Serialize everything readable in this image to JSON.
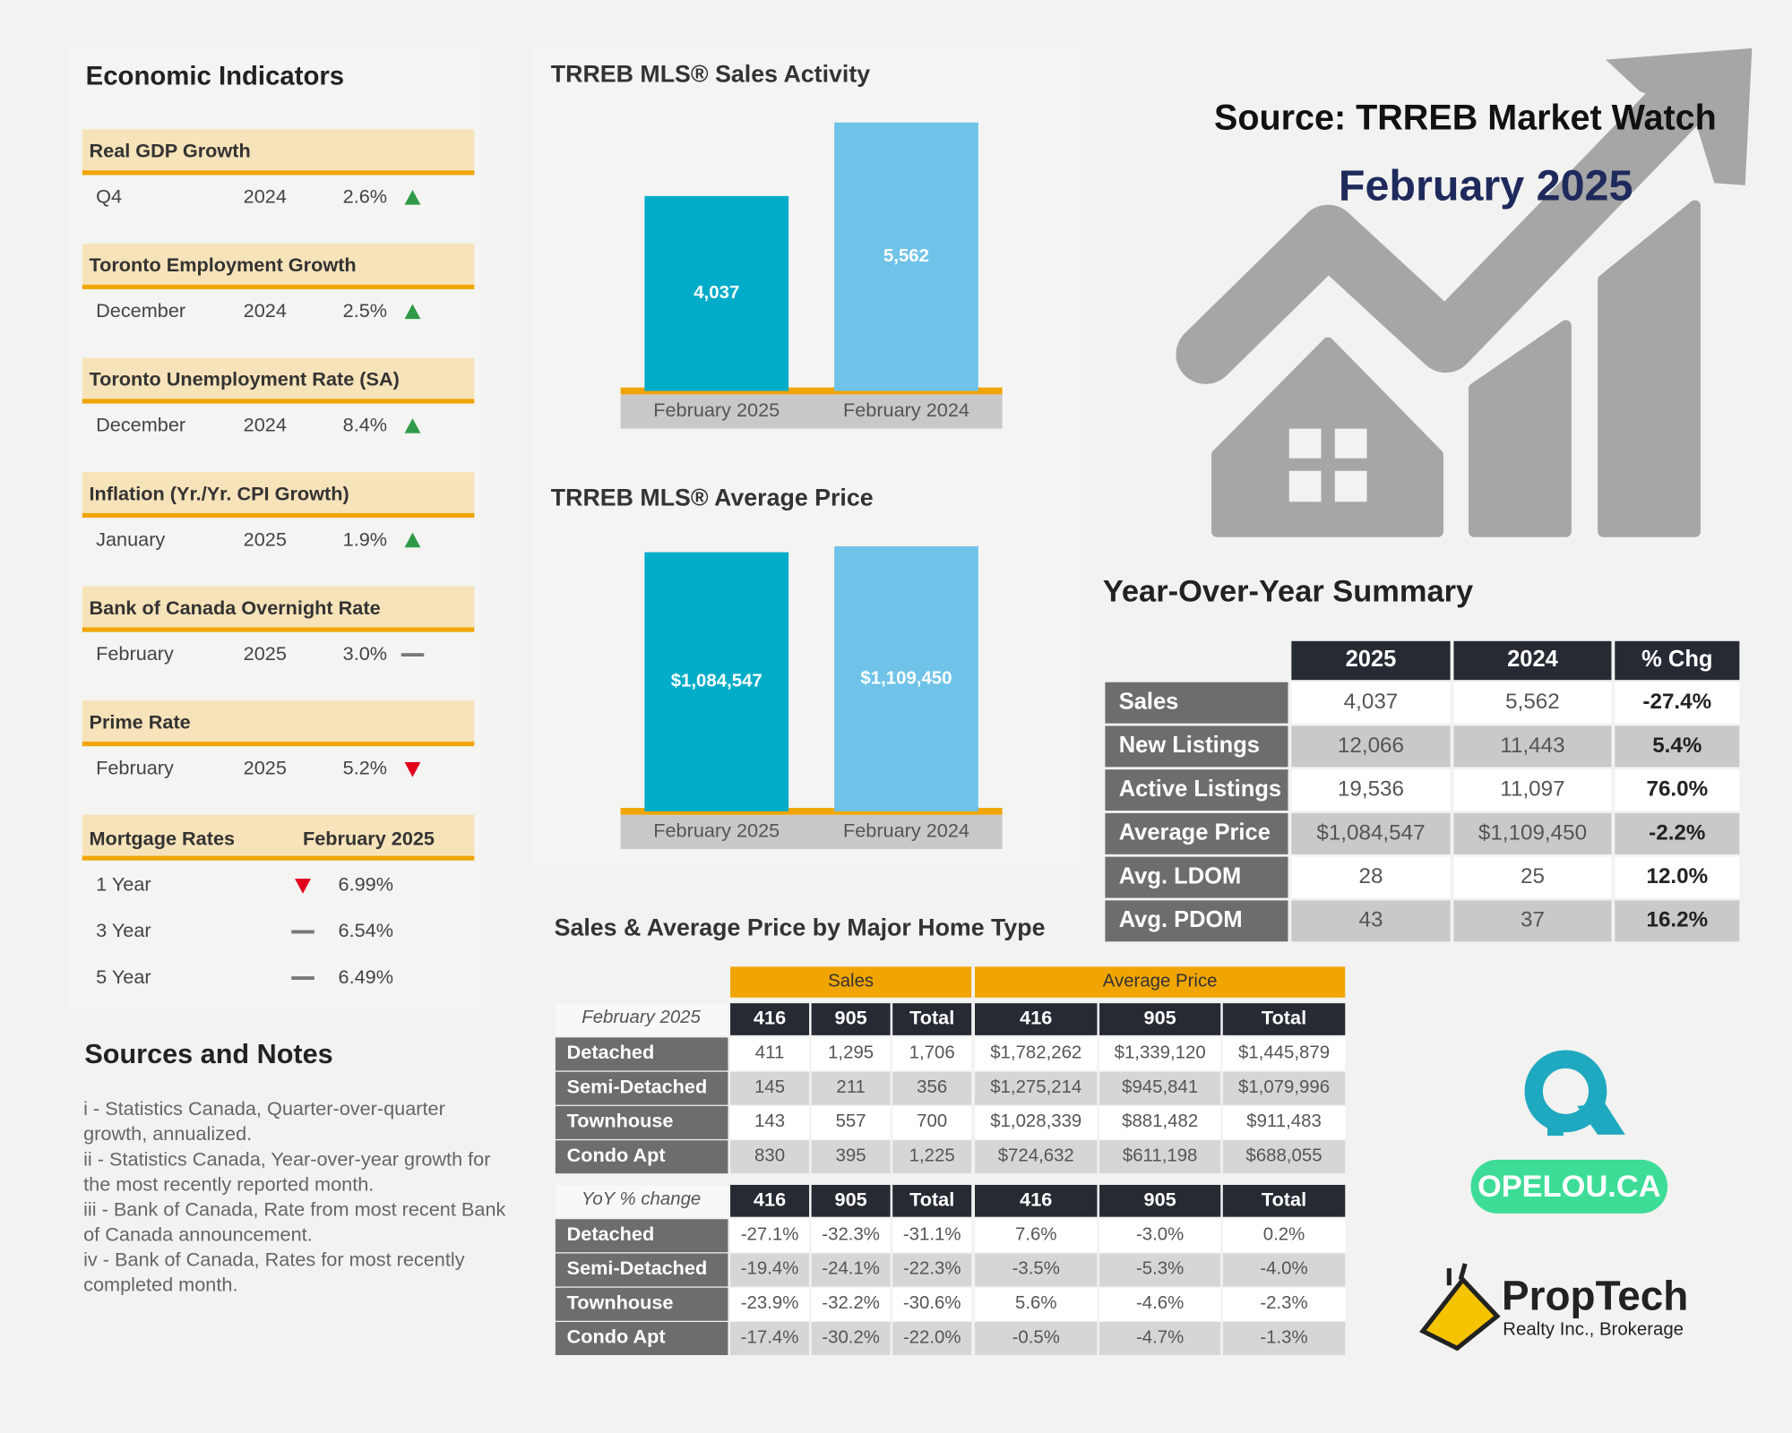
{
  "header": {
    "source": "Source: TRREB Market Watch",
    "period": "February 2025"
  },
  "economic_indicators": {
    "title": "Economic Indicators",
    "items": [
      {
        "title": "Real GDP Growth",
        "period": "Q4",
        "year": "2024",
        "value": "2.6%",
        "trend": "up"
      },
      {
        "title": "Toronto Employment Growth",
        "period": "December",
        "year": "2024",
        "value": "2.5%",
        "trend": "up"
      },
      {
        "title": "Toronto Unemployment Rate (SA)",
        "period": "December",
        "year": "2024",
        "value": "8.4%",
        "trend": "up"
      },
      {
        "title": "Inflation (Yr./Yr. CPI Growth)",
        "period": "January",
        "year": "2025",
        "value": "1.9%",
        "trend": "up"
      },
      {
        "title": "Bank of Canada Overnight Rate",
        "period": "February",
        "year": "2025",
        "value": "3.0%",
        "trend": "flat"
      },
      {
        "title": "Prime Rate",
        "period": "February",
        "year": "2025",
        "value": "5.2%",
        "trend": "down"
      }
    ],
    "mortgage": {
      "title": "Mortgage Rates",
      "period": "February 2025",
      "rows": [
        {
          "term": "1 Year",
          "value": "6.99%",
          "trend": "down"
        },
        {
          "term": "3 Year",
          "value": "6.54%",
          "trend": "flat"
        },
        {
          "term": "5 Year",
          "value": "6.49%",
          "trend": "flat"
        }
      ]
    }
  },
  "sources_notes": {
    "title": "Sources and Notes",
    "notes": [
      "i - Statistics Canada, Quarter-over-quarter growth, annualized.",
      "ii - Statistics Canada, Year-over-year growth for the most recently reported month.",
      "iii - Bank of Canada, Rate from most recent Bank of Canada announcement.",
      "iv - Bank of Canada, Rates for most recently completed month."
    ]
  },
  "chart_data": [
    {
      "type": "bar",
      "title": "TRREB MLS® Sales Activity",
      "categories": [
        "February 2025",
        "February 2024"
      ],
      "values": [
        4037,
        5562
      ],
      "value_labels": [
        "4,037",
        "5,562"
      ],
      "colors": [
        "#00acc8",
        "#6fc3e8"
      ]
    },
    {
      "type": "bar",
      "title": "TRREB MLS® Average Price",
      "categories": [
        "February 2025",
        "February 2024"
      ],
      "values": [
        1084547,
        1109450
      ],
      "value_labels": [
        "$1,084,547",
        "$1,109,450"
      ],
      "colors": [
        "#00acc8",
        "#6fc3e8"
      ]
    }
  ],
  "yoy_summary": {
    "title": "Year-Over-Year Summary",
    "columns": [
      "2025",
      "2024",
      "% Chg"
    ],
    "rows": [
      {
        "label": "Sales",
        "values": [
          "4,037",
          "5,562",
          "-27.4%"
        ]
      },
      {
        "label": "New Listings",
        "values": [
          "12,066",
          "11,443",
          "5.4%"
        ]
      },
      {
        "label": "Active Listings",
        "values": [
          "19,536",
          "11,097",
          "76.0%"
        ]
      },
      {
        "label": "Average Price",
        "values": [
          "$1,084,547",
          "$1,109,450",
          "-2.2%"
        ]
      },
      {
        "label": "Avg. LDOM",
        "values": [
          "28",
          "25",
          "12.0%"
        ]
      },
      {
        "label": "Avg. PDOM",
        "values": [
          "43",
          "37",
          "16.2%"
        ]
      }
    ]
  },
  "home_type": {
    "title": "Sales & Average Price by Major Home Type",
    "groups": [
      "Sales",
      "Average Price"
    ],
    "sections": [
      {
        "label": "February 2025",
        "columns": [
          "416",
          "905",
          "Total",
          "416",
          "905",
          "Total"
        ],
        "rows": [
          {
            "label": "Detached",
            "values": [
              "411",
              "1,295",
              "1,706",
              "$1,782,262",
              "$1,339,120",
              "$1,445,879"
            ]
          },
          {
            "label": "Semi-Detached",
            "values": [
              "145",
              "211",
              "356",
              "$1,275,214",
              "$945,841",
              "$1,079,996"
            ]
          },
          {
            "label": "Townhouse",
            "values": [
              "143",
              "557",
              "700",
              "$1,028,339",
              "$881,482",
              "$911,483"
            ]
          },
          {
            "label": "Condo Apt",
            "values": [
              "830",
              "395",
              "1,225",
              "$724,632",
              "$611,198",
              "$688,055"
            ]
          }
        ]
      },
      {
        "label": "YoY % change",
        "columns": [
          "416",
          "905",
          "Total",
          "416",
          "905",
          "Total"
        ],
        "rows": [
          {
            "label": "Detached",
            "values": [
              "-27.1%",
              "-32.3%",
              "-31.1%",
              "7.6%",
              "-3.0%",
              "0.2%"
            ]
          },
          {
            "label": "Semi-Detached",
            "values": [
              "-19.4%",
              "-24.1%",
              "-22.3%",
              "-3.5%",
              "-5.3%",
              "-4.0%"
            ]
          },
          {
            "label": "Townhouse",
            "values": [
              "-23.9%",
              "-32.2%",
              "-30.6%",
              "5.6%",
              "-4.6%",
              "-2.3%"
            ]
          },
          {
            "label": "Condo Apt",
            "values": [
              "-17.4%",
              "-30.2%",
              "-22.0%",
              "-0.5%",
              "-4.7%",
              "-1.3%"
            ]
          }
        ]
      }
    ]
  },
  "brand": {
    "site": "OPELOU.CA",
    "name": "PropTech",
    "tagline": "Realty Inc., Brokerage"
  }
}
